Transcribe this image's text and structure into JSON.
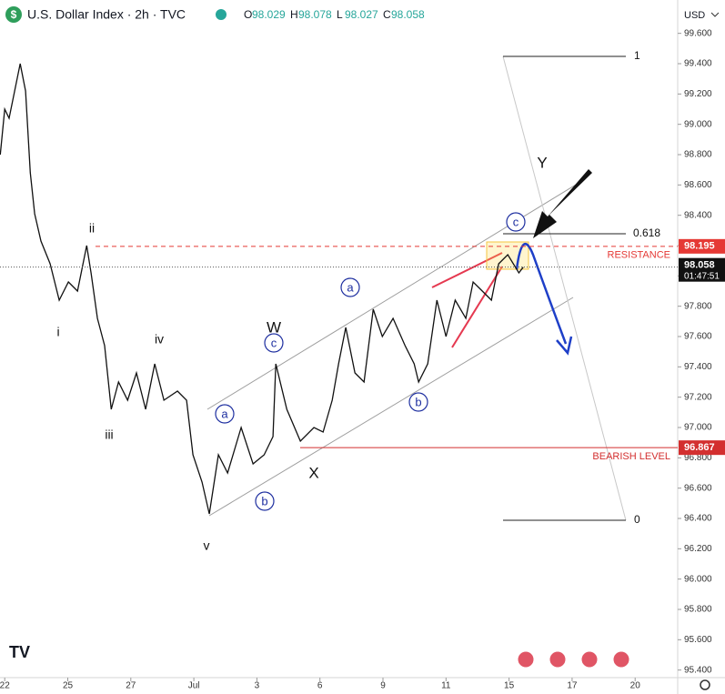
{
  "chart_data": {
    "type": "line",
    "title": "U.S. Dollar Index · 2h · TVC",
    "ohlc_labels": [
      "O",
      "H",
      "L",
      "C"
    ],
    "ohlc": [
      98.029,
      98.078,
      98.027,
      98.058
    ],
    "currency": "USD",
    "color": "#111111",
    "x": [
      -0.14,
      0,
      0.14,
      0.49,
      0.66,
      0.81,
      0.95,
      1.15,
      1.44,
      1.73,
      2.02,
      2.31,
      2.6,
      2.74,
      2.94,
      3.17,
      3.38,
      3.61,
      3.9,
      4.18,
      4.47,
      4.76,
      5.05,
      5.48,
      5.77,
      5.97,
      6.26,
      6.49,
      6.78,
      7.07,
      7.5,
      7.88,
      8.23,
      8.51,
      8.6,
      8.95,
      9.38,
      9.81,
      10.1,
      10.39,
      10.59,
      10.82,
      11.11,
      11.4,
      11.69,
      11.98,
      12.32,
      12.7,
      12.99,
      13.13,
      13.42,
      13.71,
      14.0,
      14.29,
      14.63,
      14.86,
      15.15,
      15.44,
      15.67,
      15.96,
      16.31,
      16.45
    ],
    "values": [
      98.8,
      99.1,
      99.04,
      99.4,
      99.22,
      98.68,
      98.41,
      98.23,
      98.08,
      97.84,
      97.96,
      97.9,
      98.2,
      98.02,
      97.72,
      97.54,
      97.12,
      97.3,
      97.18,
      97.36,
      97.12,
      97.42,
      97.18,
      97.24,
      97.18,
      96.82,
      96.64,
      96.43,
      96.82,
      96.7,
      97.0,
      96.76,
      96.82,
      96.94,
      97.42,
      97.12,
      96.91,
      97.0,
      96.97,
      97.18,
      97.42,
      97.66,
      97.36,
      97.3,
      97.78,
      97.6,
      97.72,
      97.54,
      97.42,
      97.3,
      97.42,
      97.84,
      97.6,
      97.84,
      97.72,
      97.96,
      97.9,
      97.84,
      98.08,
      98.14,
      98.02,
      98.058
    ],
    "xlim": [
      -0.15,
      21.35
    ],
    "xticks": [
      {
        "value": 0,
        "label": "22"
      },
      {
        "value": 2,
        "label": "25"
      },
      {
        "value": 4,
        "label": "27"
      },
      {
        "value": 6,
        "label": "Jul"
      },
      {
        "value": 8,
        "label": "3"
      },
      {
        "value": 10,
        "label": "6"
      },
      {
        "value": 12,
        "label": "9"
      },
      {
        "value": 14,
        "label": "11"
      },
      {
        "value": 16,
        "label": "15"
      },
      {
        "value": 18,
        "label": "17"
      },
      {
        "value": 20,
        "label": "20"
      }
    ],
    "ylim": [
      95.35,
      99.82
    ],
    "yticks": [
      {
        "value": 99.6,
        "label": "99.600"
      },
      {
        "value": 99.4,
        "label": "99.400"
      },
      {
        "value": 99.2,
        "label": "99.200"
      },
      {
        "value": 99.0,
        "label": "99.000"
      },
      {
        "value": 98.8,
        "label": "98.800"
      },
      {
        "value": 98.6,
        "label": "98.600"
      },
      {
        "value": 98.4,
        "label": "98.400"
      },
      {
        "value": 98.2,
        "label": "98.200"
      },
      {
        "value": 98.0,
        "label": "98.000"
      },
      {
        "value": 97.8,
        "label": "97.800"
      },
      {
        "value": 97.6,
        "label": "97.600"
      },
      {
        "value": 97.4,
        "label": "97.400"
      },
      {
        "value": 97.2,
        "label": "97.200"
      },
      {
        "value": 97.0,
        "label": "97.000"
      },
      {
        "value": 96.8,
        "label": "96.800"
      },
      {
        "value": 96.6,
        "label": "96.600"
      },
      {
        "value": 96.4,
        "label": "96.400"
      },
      {
        "value": 96.2,
        "label": "96.200"
      },
      {
        "value": 96.0,
        "label": "96.000"
      },
      {
        "value": 95.8,
        "label": "95.800"
      },
      {
        "value": 95.6,
        "label": "95.600"
      },
      {
        "value": 95.4,
        "label": "95.400"
      }
    ],
    "levels": [
      {
        "name": "RESISTANCE",
        "value": 98.195,
        "color": "#e53935"
      },
      {
        "name": "BEARISH LEVEL",
        "value": 96.867,
        "color": "#d32f2f"
      }
    ],
    "last_price": 98.058,
    "countdown": "01:47:51",
    "fib_levels": [
      1,
      0.618,
      0
    ],
    "wave_labels": [
      "ii",
      "i",
      "iii",
      "iv",
      "v",
      "W",
      "X",
      "Y"
    ],
    "circled_labels": [
      "a",
      "b",
      "c",
      "a",
      "b",
      "c"
    ]
  }
}
